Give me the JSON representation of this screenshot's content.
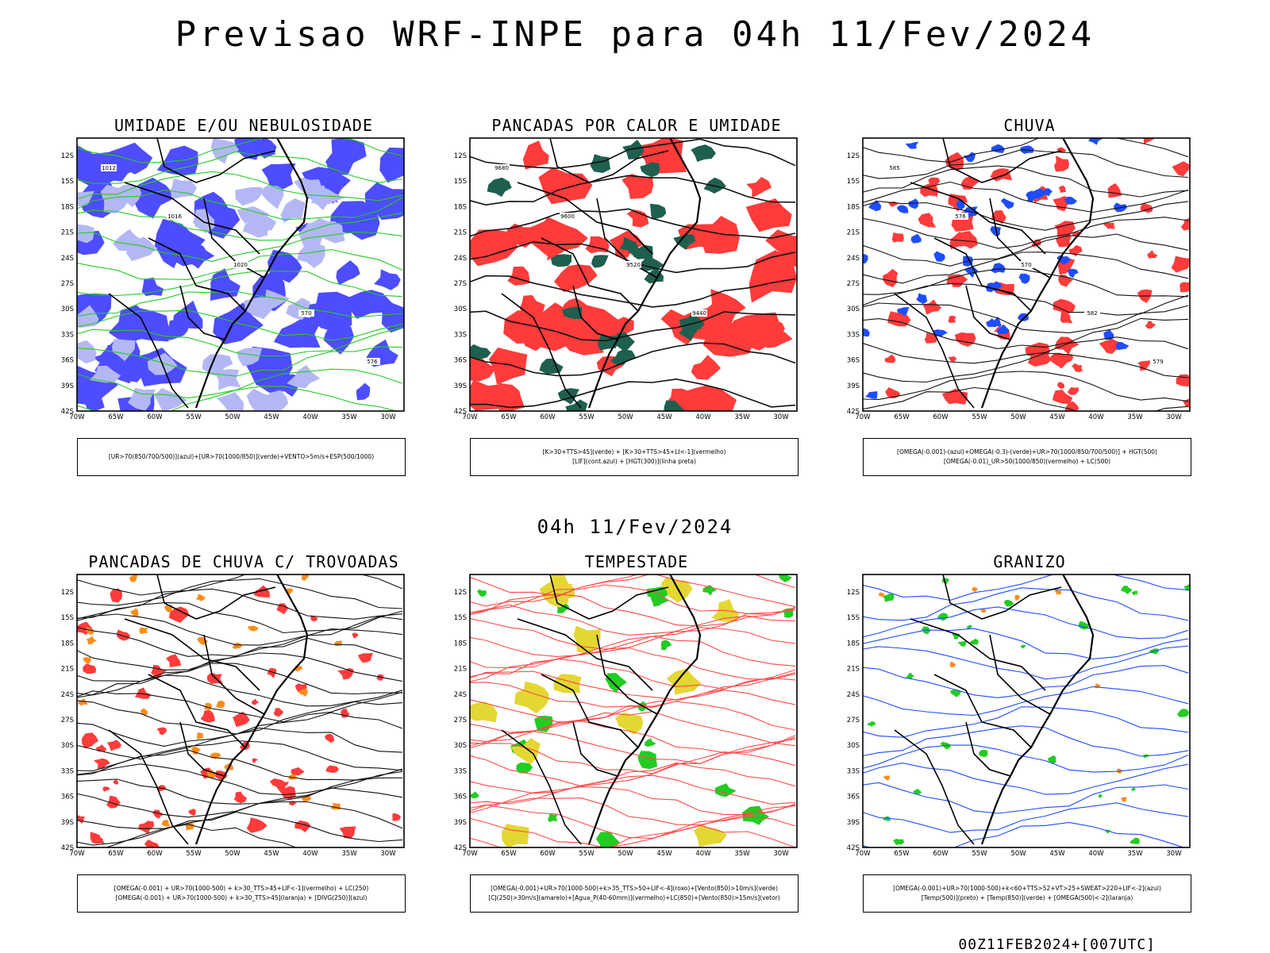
{
  "header": {
    "title": "Previsao WRF-INPE  para 04h 11/Fev/2024",
    "subtitle": "04h 11/Fev/2024",
    "footer": "00Z11FEB2024+[007UTC]"
  },
  "axes": {
    "lat_labels": [
      "12S",
      "15S",
      "18S",
      "21S",
      "24S",
      "27S",
      "30S",
      "33S",
      "36S",
      "39S",
      "42S"
    ],
    "lon_labels": [
      "70W",
      "65W",
      "60W",
      "55W",
      "50W",
      "45W",
      "40W",
      "35W",
      "30W"
    ]
  },
  "panels": [
    {
      "id": "umidade",
      "title": "UMIDADE E/OU NEBULOSIDADE",
      "legend": [
        "[UR>70(850/700/500)](azul)+[UR>70(1000/850)](verde)+VENTO>5m/s+ESP(500/1000)"
      ],
      "contour_labels": [
        "1012",
        "1016",
        "1020",
        "570",
        "576"
      ],
      "palette": {
        "a": "#4d4dff",
        "b": "#b3b8f5",
        "c": "#22cc22"
      }
    },
    {
      "id": "pancadas_calor",
      "title": "PANCADAS POR CALOR E UMIDADE",
      "legend": [
        "[K>30+TTS>45](verde) + [K>30+TTS>45+LI<-1](vermelho)",
        "[LIF](cont.azul) + [HGT(300)](linha preta)"
      ],
      "contour_labels": [
        "9680",
        "9600",
        "9520",
        "9440"
      ],
      "palette": {
        "a": "#ff3b3b",
        "b": "#1f5f4f",
        "c": "#3355ff"
      }
    },
    {
      "id": "chuva",
      "title": "CHUVA",
      "legend": [
        "[OMEGA(-0.001)-(azul)+OMEGA(-0.3)-(verde)+UR>70(1000/850/700/500)] + HGT(500)",
        "[OMEGA(-0.01)_UR>50(1000/850)(vermelho) + LC(500)"
      ],
      "contour_labels": [
        "585",
        "576",
        "570",
        "582",
        "579"
      ],
      "palette": {
        "a": "#ff3b3b",
        "b": "#1e4dff",
        "c": "#22cc22"
      }
    },
    {
      "id": "pancadas_trovoadas",
      "title": "PANCADAS DE CHUVA C/ TROVOADAS",
      "legend": [
        "[OMEGA(-0.001) + UR>70(1000-500) + k>30_TTS>45+LIF<-1](vermelho) + LC(250)",
        "[OMEGA(-0.001) + UR>70(1000-500) + k>30_TTS>45](laranja) + [DIVG(250)](azul)"
      ],
      "contour_labels": [],
      "palette": {
        "a": "#ff3b3b",
        "b": "#ff8c1a",
        "c": "#1e4dff"
      }
    },
    {
      "id": "tempestade",
      "title": "TEMPESTADE",
      "legend": [
        "[OMEGA(-0.001)+UR>70(1000-500)+k>35_TTS>50+LIF<-4](roxo)+[Vento(850)>10m/s](verde)",
        "[CJ(250)>30m/s](amarelo)+[Agua_P(40-60mm)](vermelho)+LC(850)+[Vento(850)>15m/s](vetor)"
      ],
      "contour_labels": [],
      "palette": {
        "a": "#22cc22",
        "b": "#e3d733",
        "c": "#ff4a4a"
      }
    },
    {
      "id": "granizo",
      "title": "GRANIZO",
      "legend": [
        "[OMEGA(-0.001)+UR>70(1000-500)+k<60+TTS>52+VT>25+SWEAT>220+LIF<-2](azul)",
        "[Temp(500)](preto) + [Temp(850)](verde) + [OMEGA(500)<-2](laranja)"
      ],
      "contour_labels": [],
      "palette": {
        "a": "#22cc22",
        "b": "#ff8c1a",
        "c": "#1e4dff"
      }
    }
  ]
}
